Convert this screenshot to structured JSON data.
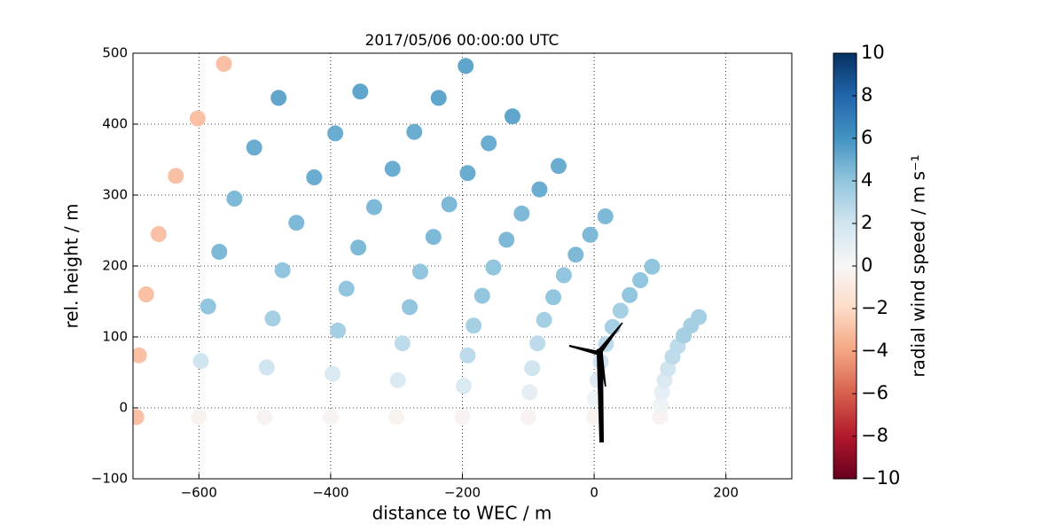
{
  "chart_data": {
    "type": "scatter",
    "title": "2017/05/06 00:00:00 UTC",
    "x_label": "distance to WEC / m",
    "y_label": "rel. height / m",
    "xlim": [
      -700,
      300
    ],
    "ylim": [
      -100,
      500
    ],
    "xticks": [
      {
        "value": -600,
        "label": "−600"
      },
      {
        "value": -400,
        "label": "−400"
      },
      {
        "value": -200,
        "label": "−200"
      },
      0,
      200
    ],
    "yticks": [
      {
        "value": -100,
        "label": "−100"
      },
      0,
      100,
      200,
      300,
      400,
      500
    ],
    "grid": true,
    "colormap": "RdBu",
    "colorbar": {
      "label": "radial wind speed / m s⁻¹",
      "lim": [
        -10,
        10
      ],
      "ticks": [
        10,
        8,
        6,
        4,
        2,
        0,
        {
          "value": -2,
          "label": "−2"
        },
        {
          "value": -4,
          "label": "−4"
        },
        {
          "value": -6,
          "label": "−6"
        },
        {
          "value": -8,
          "label": "−8"
        },
        {
          "value": -10,
          "label": "−10"
        }
      ]
    },
    "x": [
      100,
      101,
      103,
      107,
      112,
      119,
      127,
      136,
      147,
      159,
      0,
      1,
      5,
      10,
      18,
      28,
      40,
      54,
      70,
      88,
      -100,
      -98,
      -94,
      -86,
      -76,
      -62,
      -46,
      -28,
      -6,
      17,
      -200,
      -198,
      -192,
      -183,
      -170,
      -153,
      -133,
      -110,
      -83,
      -54,
      -300,
      -298,
      -291,
      -280,
      -264,
      -244,
      -220,
      -192,
      -160,
      -124,
      -400,
      -397,
      -389,
      -376,
      -358,
      -334,
      -306,
      -273,
      -236,
      -195,
      -500,
      -497,
      -488,
      -473,
      -452,
      -425,
      -393,
      -355,
      -600,
      -597,
      -586,
      -569,
      -546,
      -516,
      -479,
      -695,
      -691,
      -680,
      -661,
      -635,
      -602,
      -562
    ],
    "y": [
      -13,
      4,
      22,
      39,
      55,
      72,
      87,
      102,
      116,
      128,
      -13,
      13,
      39,
      65,
      90,
      114,
      137,
      159,
      180,
      199,
      -13,
      22,
      56,
      91,
      124,
      156,
      187,
      216,
      244,
      270,
      -13,
      31,
      74,
      116,
      158,
      198,
      237,
      274,
      308,
      341,
      -13,
      39,
      91,
      142,
      192,
      241,
      287,
      331,
      373,
      411,
      -13,
      48,
      109,
      168,
      226,
      283,
      337,
      389,
      437,
      482,
      -13,
      57,
      126,
      194,
      261,
      325,
      387,
      446,
      -13,
      66,
      143,
      220,
      295,
      367,
      437,
      -13,
      74,
      160,
      245,
      327,
      408,
      485
    ],
    "values": [
      -0.3,
      0.5,
      1,
      1.5,
      2,
      2.6,
      2.6,
      3.4,
      3.4,
      3.4,
      -0.3,
      0.5,
      1.5,
      2,
      2.6,
      3.4,
      3.4,
      4,
      4,
      4,
      -0.3,
      1,
      2,
      2.6,
      3.4,
      4,
      4,
      4.5,
      4.5,
      4.5,
      -0.3,
      1.5,
      2.6,
      3.4,
      4,
      4,
      4.5,
      4.5,
      5,
      5,
      -0.3,
      1.5,
      2.6,
      4,
      4,
      4.5,
      4.5,
      5,
      5,
      5.3,
      -0.3,
      1.5,
      3.4,
      4,
      4.5,
      4.5,
      5,
      5,
      5.3,
      5.3,
      -0.3,
      2,
      3.4,
      4,
      4.5,
      5,
      5,
      5.3,
      -0.3,
      2,
      4,
      4.5,
      4.5,
      5,
      5.3,
      -3,
      -3,
      -3,
      -3,
      -3,
      -3,
      -3
    ]
  }
}
